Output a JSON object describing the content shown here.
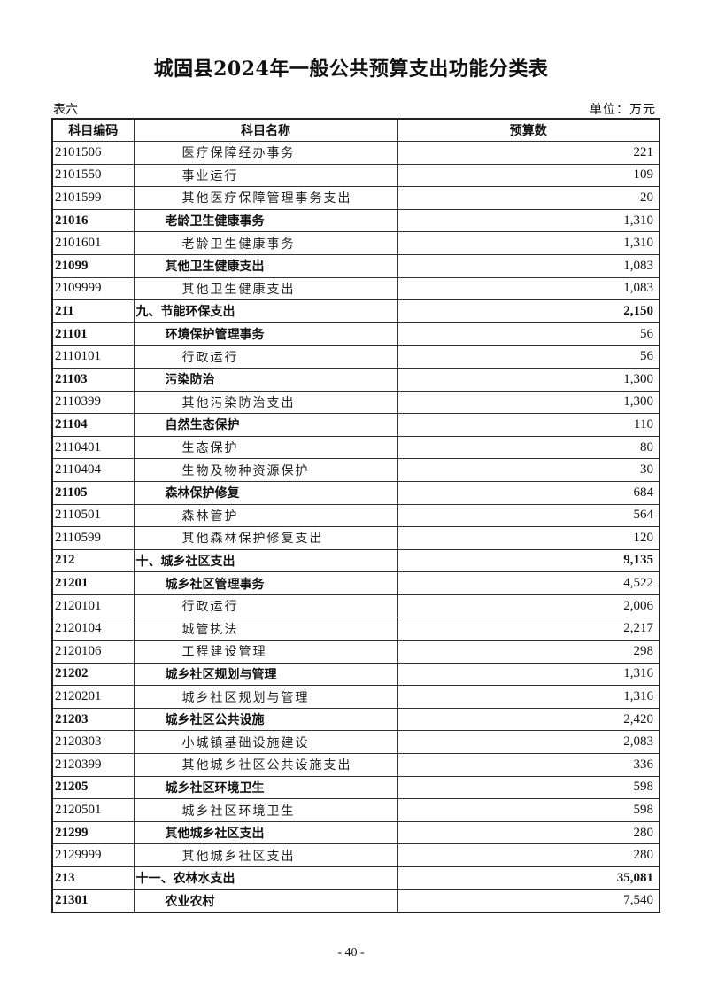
{
  "title": "城固县2024年一般公共预算支出功能分类表",
  "table_no": "表六",
  "unit": "单位：万元",
  "headers": [
    "科目编码",
    "科目名称",
    "预算数"
  ],
  "rows": [
    {
      "level": 3,
      "code": "2101506",
      "name": "医疗保障经办事务",
      "value": "221"
    },
    {
      "level": 3,
      "code": "2101550",
      "name": "事业运行",
      "value": "109"
    },
    {
      "level": 3,
      "code": "2101599",
      "name": "其他医疗保障管理事务支出",
      "value": "20"
    },
    {
      "level": 2,
      "code": "21016",
      "name": "老龄卫生健康事务",
      "value": "1,310"
    },
    {
      "level": 3,
      "code": "2101601",
      "name": "老龄卫生健康事务",
      "value": "1,310"
    },
    {
      "level": 2,
      "code": "21099",
      "name": "其他卫生健康支出",
      "value": "1,083"
    },
    {
      "level": 3,
      "code": "2109999",
      "name": "其他卫生健康支出",
      "value": "1,083"
    },
    {
      "level": 1,
      "code": "211",
      "name": "九、节能环保支出",
      "value": "2,150"
    },
    {
      "level": 2,
      "code": "21101",
      "name": "环境保护管理事务",
      "value": "56"
    },
    {
      "level": 3,
      "code": "2110101",
      "name": "行政运行",
      "value": "56"
    },
    {
      "level": 2,
      "code": "21103",
      "name": "污染防治",
      "value": "1,300"
    },
    {
      "level": 3,
      "code": "2110399",
      "name": "其他污染防治支出",
      "value": "1,300"
    },
    {
      "level": 2,
      "code": "21104",
      "name": "自然生态保护",
      "value": "110"
    },
    {
      "level": 3,
      "code": "2110401",
      "name": "生态保护",
      "value": "80"
    },
    {
      "level": 3,
      "code": "2110404",
      "name": "生物及物种资源保护",
      "value": "30"
    },
    {
      "level": 2,
      "code": "21105",
      "name": "森林保护修复",
      "value": "684"
    },
    {
      "level": 3,
      "code": "2110501",
      "name": "森林管护",
      "value": "564"
    },
    {
      "level": 3,
      "code": "2110599",
      "name": "其他森林保护修复支出",
      "value": "120"
    },
    {
      "level": 1,
      "code": "212",
      "name": "十、城乡社区支出",
      "value": "9,135"
    },
    {
      "level": 2,
      "code": "21201",
      "name": "城乡社区管理事务",
      "value": "4,522"
    },
    {
      "level": 3,
      "code": "2120101",
      "name": "行政运行",
      "value": "2,006"
    },
    {
      "level": 3,
      "code": "2120104",
      "name": "城管执法",
      "value": "2,217"
    },
    {
      "level": 3,
      "code": "2120106",
      "name": "工程建设管理",
      "value": "298"
    },
    {
      "level": 2,
      "code": "21202",
      "name": "城乡社区规划与管理",
      "value": "1,316"
    },
    {
      "level": 3,
      "code": "2120201",
      "name": "城乡社区规划与管理",
      "value": "1,316"
    },
    {
      "level": 2,
      "code": "21203",
      "name": "城乡社区公共设施",
      "value": "2,420"
    },
    {
      "level": 3,
      "code": "2120303",
      "name": "小城镇基础设施建设",
      "value": "2,083"
    },
    {
      "level": 3,
      "code": "2120399",
      "name": "其他城乡社区公共设施支出",
      "value": "336"
    },
    {
      "level": 2,
      "code": "21205",
      "name": "城乡社区环境卫生",
      "value": "598"
    },
    {
      "level": 3,
      "code": "2120501",
      "name": "城乡社区环境卫生",
      "value": "598"
    },
    {
      "level": 2,
      "code": "21299",
      "name": "其他城乡社区支出",
      "value": "280"
    },
    {
      "level": 3,
      "code": "2129999",
      "name": "其他城乡社区支出",
      "value": "280"
    },
    {
      "level": 1,
      "code": "213",
      "name": "十一、农林水支出",
      "value": "35,081"
    },
    {
      "level": 2,
      "code": "21301",
      "name": "农业农村",
      "value": "7,540"
    }
  ],
  "page_number": "- 40 -"
}
